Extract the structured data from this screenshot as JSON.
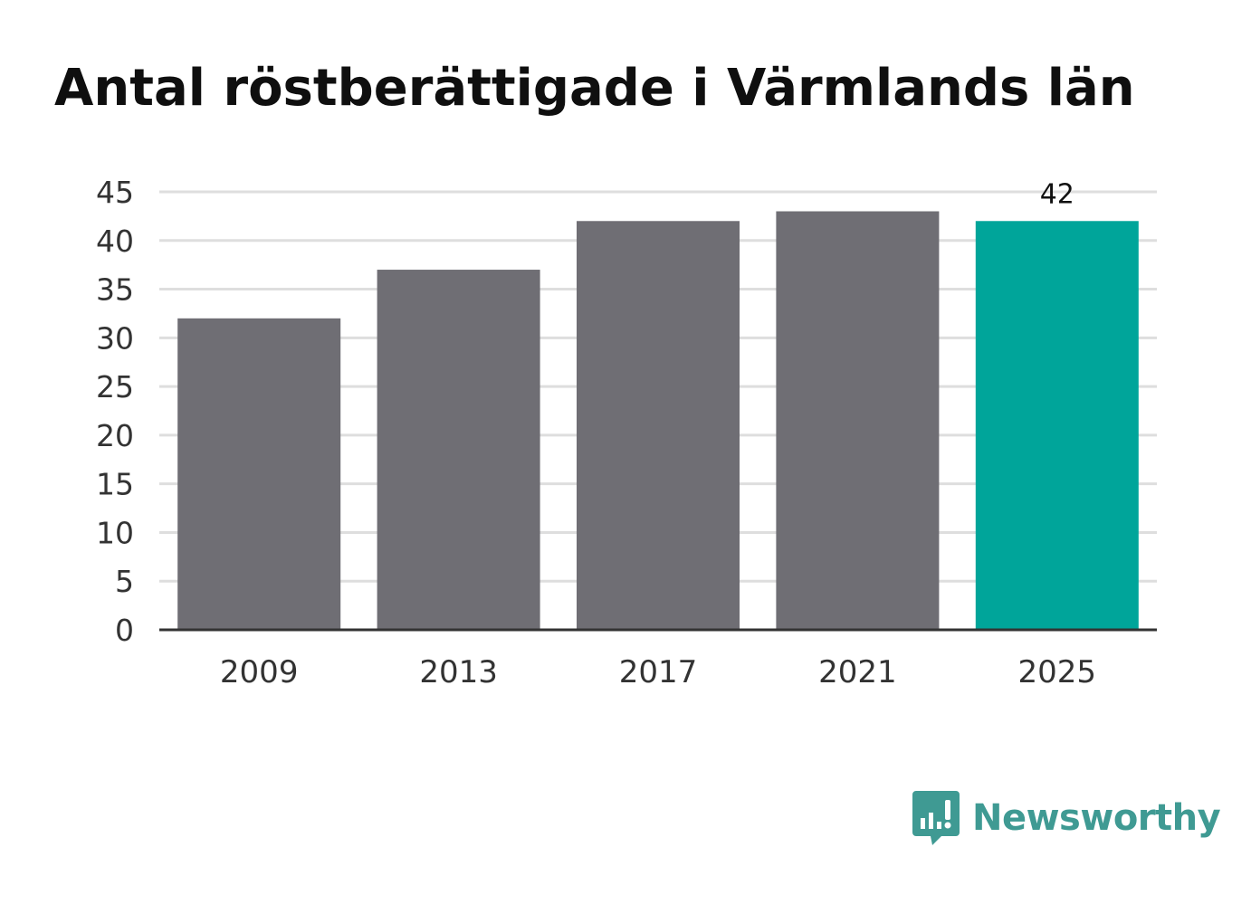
{
  "title": "Antal röstberättigade i Värmlands län",
  "brand": {
    "name": "Newsworthy",
    "icon": "newsworthy-logo-icon",
    "color": "#3f9a93"
  },
  "colors": {
    "bar": "#6f6e74",
    "highlight": "#00a59a",
    "grid": "#dedede",
    "axis": "#333333",
    "text": "#333333"
  },
  "chart_data": {
    "type": "bar",
    "title": "Antal röstberättigade i Värmlands län",
    "xlabel": "",
    "ylabel": "",
    "categories": [
      "2009",
      "2013",
      "2017",
      "2021",
      "2025"
    ],
    "values": [
      32,
      37,
      42,
      43,
      42
    ],
    "highlight_index": 4,
    "data_labels": [
      {
        "index": 4,
        "text": "42"
      }
    ],
    "ylim": [
      0,
      45
    ],
    "yticks": [
      "0",
      "5",
      "10",
      "15",
      "20",
      "25",
      "30",
      "35",
      "40",
      "45"
    ],
    "grid": true,
    "legend": "none"
  }
}
